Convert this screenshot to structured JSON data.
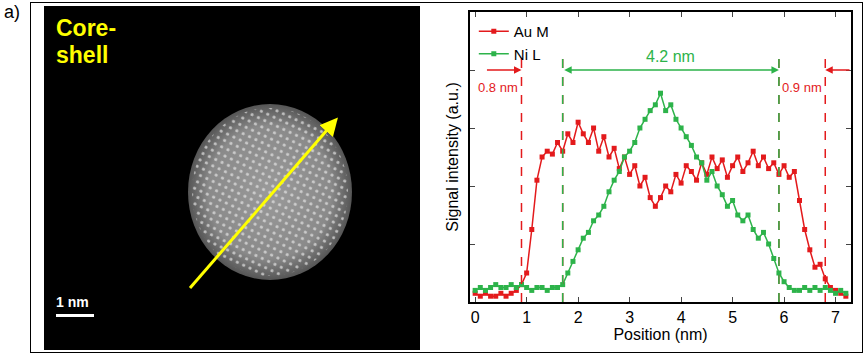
{
  "panel_label": "a)",
  "image_panel": {
    "label": "Core-shell",
    "scale_bar": "1 nm"
  },
  "chart_data": {
    "type": "line",
    "xlabel": "Position (nm)",
    "ylabel": "Signal intensity (a.u.)",
    "x": [
      0.0,
      0.1,
      0.2,
      0.3,
      0.4,
      0.5,
      0.6,
      0.7,
      0.8,
      0.9,
      1.0,
      1.1,
      1.2,
      1.3,
      1.4,
      1.5,
      1.6,
      1.7,
      1.8,
      1.9,
      2.0,
      2.1,
      2.2,
      2.3,
      2.4,
      2.5,
      2.6,
      2.7,
      2.8,
      2.9,
      3.0,
      3.1,
      3.2,
      3.3,
      3.4,
      3.5,
      3.6,
      3.7,
      3.8,
      3.9,
      4.0,
      4.1,
      4.2,
      4.3,
      4.4,
      4.5,
      4.6,
      4.7,
      4.8,
      4.9,
      5.0,
      5.1,
      5.2,
      5.3,
      5.4,
      5.5,
      5.6,
      5.7,
      5.8,
      5.9,
      6.0,
      6.1,
      6.2,
      6.3,
      6.4,
      6.5,
      6.6,
      6.7,
      6.8,
      6.9,
      7.0,
      7.1,
      7.2
    ],
    "series": [
      {
        "name": "Au M",
        "color": "#e31a1c",
        "marker": "square",
        "line_style": "solid",
        "values": [
          0.03,
          0.02,
          0.03,
          0.02,
          0.02,
          0.03,
          0.02,
          0.03,
          0.04,
          0.06,
          0.1,
          0.25,
          0.42,
          0.5,
          0.52,
          0.51,
          0.55,
          0.52,
          0.58,
          0.55,
          0.62,
          0.58,
          0.55,
          0.6,
          0.52,
          0.57,
          0.5,
          0.53,
          0.46,
          0.5,
          0.44,
          0.47,
          0.4,
          0.43,
          0.36,
          0.33,
          0.36,
          0.4,
          0.38,
          0.44,
          0.41,
          0.47,
          0.45,
          0.42,
          0.48,
          0.44,
          0.5,
          0.46,
          0.49,
          0.43,
          0.47,
          0.5,
          0.45,
          0.48,
          0.52,
          0.47,
          0.5,
          0.46,
          0.48,
          0.44,
          0.47,
          0.43,
          0.45,
          0.35,
          0.25,
          0.18,
          0.12,
          0.13,
          0.08,
          0.05,
          0.04,
          0.03,
          0.02
        ]
      },
      {
        "name": "Ni L",
        "color": "#2db34a",
        "marker": "square",
        "line_style": "solid",
        "values": [
          0.04,
          0.05,
          0.04,
          0.05,
          0.06,
          0.05,
          0.05,
          0.06,
          0.05,
          0.06,
          0.05,
          0.04,
          0.05,
          0.05,
          0.04,
          0.05,
          0.05,
          0.06,
          0.1,
          0.14,
          0.18,
          0.22,
          0.24,
          0.28,
          0.3,
          0.33,
          0.38,
          0.42,
          0.45,
          0.5,
          0.52,
          0.55,
          0.6,
          0.63,
          0.66,
          0.68,
          0.72,
          0.66,
          0.68,
          0.63,
          0.6,
          0.57,
          0.54,
          0.5,
          0.48,
          0.42,
          0.45,
          0.4,
          0.37,
          0.33,
          0.35,
          0.3,
          0.28,
          0.3,
          0.25,
          0.22,
          0.24,
          0.2,
          0.15,
          0.1,
          0.07,
          0.05,
          0.04,
          0.04,
          0.05,
          0.04,
          0.05,
          0.04,
          0.05,
          0.04,
          0.03,
          0.04,
          0.03
        ]
      }
    ],
    "xlim": [
      -0.1,
      7.3
    ],
    "ylim": [
      0,
      1
    ],
    "xticks": [
      0,
      1,
      2,
      3,
      4,
      5,
      6,
      7
    ],
    "tick_labels": "x",
    "legend": "top left",
    "annotations": [
      {
        "text": "0.8 nm",
        "from": 0.9,
        "to": 1.7,
        "color": "#e31a1c"
      },
      {
        "text": "0.9 nm",
        "from": 5.9,
        "to": 6.8,
        "color": "#e31a1c"
      },
      {
        "text": "4.2 nm",
        "from": 1.7,
        "to": 5.9,
        "color": "#2db34a"
      }
    ]
  }
}
